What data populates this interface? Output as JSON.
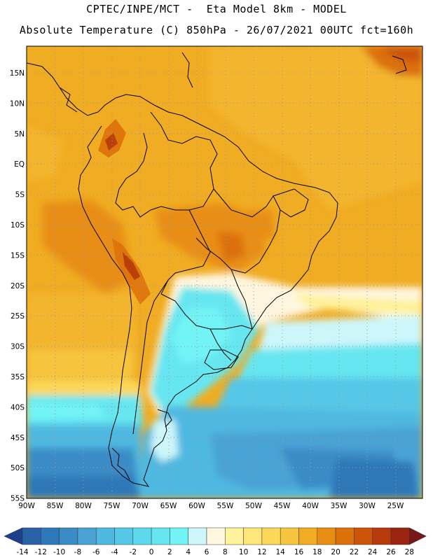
{
  "header": {
    "line1": "CPTEC/INPE/MCT -  Eta Model 8km - MODEL",
    "line2": "Absolute Temperature (C) 850hPa - 26/07/2021 00UTC fct=160h"
  },
  "map": {
    "lat_labels": [
      "15N",
      "10N",
      "5N",
      "EQ",
      "5S",
      "10S",
      "15S",
      "20S",
      "25S",
      "30S",
      "35S",
      "40S",
      "45S",
      "50S",
      "55S"
    ],
    "lon_labels": [
      "90W",
      "85W",
      "80W",
      "75W",
      "70W",
      "65W",
      "60W",
      "55W",
      "50W",
      "45W",
      "40W",
      "35W",
      "30W",
      "25W"
    ],
    "region": "South America"
  },
  "colorbar": {
    "labels": [
      "-14",
      "-12",
      "-10",
      "-8",
      "-6",
      "-4",
      "-2",
      "0",
      "2",
      "4",
      "6",
      "8",
      "10",
      "12",
      "14",
      "16",
      "18",
      "20",
      "22",
      "24",
      "26",
      "28"
    ],
    "colors": [
      "#1e3f8a",
      "#2a62a8",
      "#2d78b8",
      "#3a8cc6",
      "#4aa2d4",
      "#4fb8e0",
      "#55c8e8",
      "#5ed8ec",
      "#66e6f0",
      "#72f4f6",
      "#cdf6fb",
      "#fff6e0",
      "#fef29a",
      "#fde77a",
      "#fbd85a",
      "#f6c43e",
      "#f0ac22",
      "#e88e12",
      "#dc700a",
      "#cc5408",
      "#b63a0a",
      "#9a2410",
      "#781818"
    ]
  }
}
